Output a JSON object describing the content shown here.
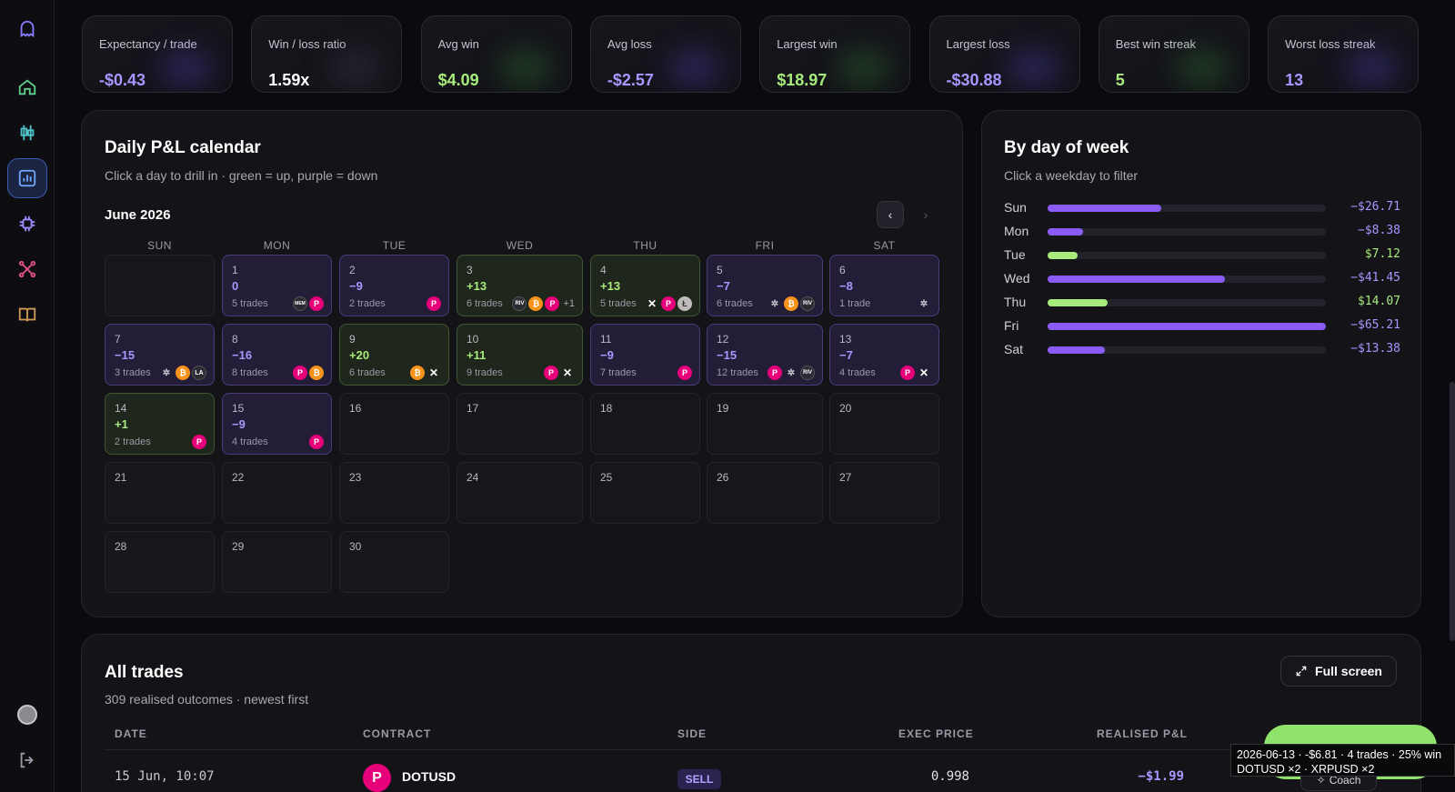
{
  "stats": [
    {
      "label": "Expectancy / trade",
      "value": "-$0.43",
      "tone": "neg"
    },
    {
      "label": "Win / loss ratio",
      "value": "1.59x",
      "tone": "neu"
    },
    {
      "label": "Avg win",
      "value": "$4.09",
      "tone": "pos"
    },
    {
      "label": "Avg loss",
      "value": "-$2.57",
      "tone": "neg"
    },
    {
      "label": "Largest win",
      "value": "$18.97",
      "tone": "pos"
    },
    {
      "label": "Largest loss",
      "value": "-$30.88",
      "tone": "neg"
    },
    {
      "label": "Best win streak",
      "value": "5",
      "tone": "pos"
    },
    {
      "label": "Worst loss streak",
      "value": "13",
      "tone": "neg"
    }
  ],
  "calendar": {
    "title": "Daily P&L calendar",
    "subtitle": "Click a day to drill in · green = up, purple = down",
    "month": "June 2026",
    "prev": "‹",
    "next": "›",
    "weekdays": [
      "SUN",
      "MON",
      "TUE",
      "WED",
      "THU",
      "FRI",
      "SAT"
    ],
    "first_weekday": 1,
    "days": [
      {
        "d": "1",
        "pnl": "0",
        "trades": "5 trades",
        "state": "down",
        "icons": [
          "mem",
          "dot"
        ]
      },
      {
        "d": "2",
        "pnl": "−9",
        "trades": "2 trades",
        "state": "down",
        "icons": [
          "dot"
        ]
      },
      {
        "d": "3",
        "pnl": "+13",
        "trades": "6 trades",
        "state": "up",
        "icons": [
          "riv",
          "btc",
          "dot",
          "+1"
        ]
      },
      {
        "d": "4",
        "pnl": "+13",
        "trades": "5 trades",
        "state": "up",
        "icons": [
          "xrp",
          "dot",
          "ltc"
        ]
      },
      {
        "d": "5",
        "pnl": "−7",
        "trades": "6 trades",
        "state": "down",
        "icons": [
          "sol",
          "btc",
          "riv"
        ]
      },
      {
        "d": "6",
        "pnl": "−8",
        "trades": "1 trade",
        "state": "down",
        "icons": [
          "sol"
        ]
      },
      {
        "d": "7",
        "pnl": "−15",
        "trades": "3 trades",
        "state": "down",
        "icons": [
          "sol",
          "btc",
          "la"
        ]
      },
      {
        "d": "8",
        "pnl": "−16",
        "trades": "8 trades",
        "state": "down",
        "icons": [
          "dot",
          "btc"
        ]
      },
      {
        "d": "9",
        "pnl": "+20",
        "trades": "6 trades",
        "state": "up",
        "icons": [
          "btc",
          "xrp"
        ]
      },
      {
        "d": "10",
        "pnl": "+11",
        "trades": "9 trades",
        "state": "up",
        "icons": [
          "dot",
          "xrp"
        ]
      },
      {
        "d": "11",
        "pnl": "−9",
        "trades": "7 trades",
        "state": "down",
        "icons": [
          "dot"
        ]
      },
      {
        "d": "12",
        "pnl": "−15",
        "trades": "12 trades",
        "state": "down",
        "icons": [
          "dot",
          "sol",
          "riv"
        ]
      },
      {
        "d": "13",
        "pnl": "−7",
        "trades": "4 trades",
        "state": "down",
        "icons": [
          "dot",
          "xrp"
        ]
      },
      {
        "d": "14",
        "pnl": "+1",
        "trades": "2 trades",
        "state": "up",
        "icons": [
          "dot"
        ]
      },
      {
        "d": "15",
        "pnl": "−9",
        "trades": "4 trades",
        "state": "down",
        "icons": [
          "dot"
        ]
      },
      {
        "d": "16"
      },
      {
        "d": "17"
      },
      {
        "d": "18"
      },
      {
        "d": "19"
      },
      {
        "d": "20"
      },
      {
        "d": "21"
      },
      {
        "d": "22"
      },
      {
        "d": "23"
      },
      {
        "d": "24"
      },
      {
        "d": "25"
      },
      {
        "d": "26"
      },
      {
        "d": "27"
      },
      {
        "d": "28"
      },
      {
        "d": "29"
      },
      {
        "d": "30"
      }
    ],
    "icon_glyphs": {
      "dot": "P",
      "btc": "₿",
      "riv": "RIV",
      "mem": "MEM",
      "la": "LA",
      "ltc": "Ł",
      "xrp": "✕",
      "sol": "✲"
    }
  },
  "weekday_panel": {
    "title": "By day of week",
    "subtitle": "Click a weekday to filter"
  },
  "chart_data": {
    "type": "bar",
    "categories": [
      "Sun",
      "Mon",
      "Tue",
      "Wed",
      "Thu",
      "Fri",
      "Sat"
    ],
    "values": [
      -26.71,
      -8.38,
      7.12,
      -41.45,
      14.07,
      -65.21,
      -13.38
    ],
    "labels": [
      "−$26.71",
      "−$8.38",
      "$7.12",
      "−$41.45",
      "$14.07",
      "−$65.21",
      "−$13.38"
    ],
    "title": "By day of week",
    "colors": {
      "negative": "#8a5cf6",
      "positive": "#a7eb7b"
    }
  },
  "trades": {
    "title": "All trades",
    "subtitle": "309 realised outcomes · newest first",
    "fullscreen_label": "Full screen",
    "columns": [
      "DATE",
      "CONTRACT",
      "SIDE",
      "EXEC PRICE",
      "REALISED P&L"
    ],
    "rows": [
      {
        "date": "15 Jun, 10:07",
        "contract": "DOTUSD",
        "side": "SELL",
        "price": "0.998",
        "pnl": "−$1.99"
      }
    ]
  },
  "coach_label": "Coach",
  "tooltip": {
    "line1": "2026-06-13 · -$6.81 · 4 trades · 25% win",
    "line2": "DOTUSD ×2 · XRPUSD ×2"
  }
}
